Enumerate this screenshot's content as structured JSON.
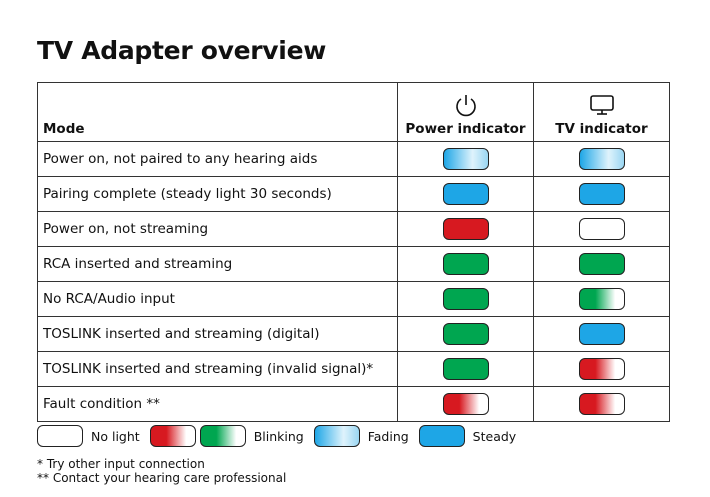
{
  "header": {
    "title": "TV Adapter overview"
  },
  "table": {
    "columns": [
      "Mode",
      "Power indicator",
      "TV indicator"
    ],
    "rows": [
      {
        "mode": "Power on, not paired to any hearing aids",
        "power": {
          "effect": "fading",
          "color": "#1ea6e6"
        },
        "tv": {
          "effect": "fading",
          "color": "#1ea6e6"
        }
      },
      {
        "mode": "Pairing complete (steady light 30 seconds)",
        "power": {
          "effect": "steady",
          "color": "#1ea6e6"
        },
        "tv": {
          "effect": "steady",
          "color": "#1ea6e6"
        }
      },
      {
        "mode": "Power on, not streaming",
        "power": {
          "effect": "steady",
          "color": "#d71920"
        },
        "tv": {
          "effect": "off",
          "color": "#ffffff"
        }
      },
      {
        "mode": "RCA inserted and streaming",
        "power": {
          "effect": "steady",
          "color": "#00a650"
        },
        "tv": {
          "effect": "steady",
          "color": "#00a650"
        }
      },
      {
        "mode": "No RCA/Audio input",
        "power": {
          "effect": "steady",
          "color": "#00a650"
        },
        "tv": {
          "effect": "blinking",
          "color": "#00a650"
        }
      },
      {
        "mode": "TOSLINK inserted and streaming (digital)",
        "power": {
          "effect": "steady",
          "color": "#00a650"
        },
        "tv": {
          "effect": "steady",
          "color": "#1ea6e6"
        }
      },
      {
        "mode": "TOSLINK inserted and streaming (invalid signal)*",
        "power": {
          "effect": "steady",
          "color": "#00a650"
        },
        "tv": {
          "effect": "blinking",
          "color": "#d71920"
        }
      },
      {
        "mode": "Fault condition **",
        "power": {
          "effect": "blinking",
          "color": "#d71920"
        },
        "tv": {
          "effect": "blinking",
          "color": "#d71920"
        }
      }
    ]
  },
  "legend": [
    {
      "label": "No light",
      "swatches": [
        {
          "effect": "off",
          "color": "#ffffff"
        }
      ]
    },
    {
      "label": "Blinking",
      "swatches": [
        {
          "effect": "blinking",
          "color": "#d71920"
        },
        {
          "effect": "blinking",
          "color": "#00a650"
        }
      ]
    },
    {
      "label": "Fading",
      "swatches": [
        {
          "effect": "fading",
          "color": "#1ea6e6"
        }
      ]
    },
    {
      "label": "Steady",
      "swatches": [
        {
          "effect": "steady",
          "color": "#1ea6e6"
        }
      ]
    }
  ],
  "footnotes": [
    "* Try other input connection",
    "** Contact your hearing care professional"
  ]
}
